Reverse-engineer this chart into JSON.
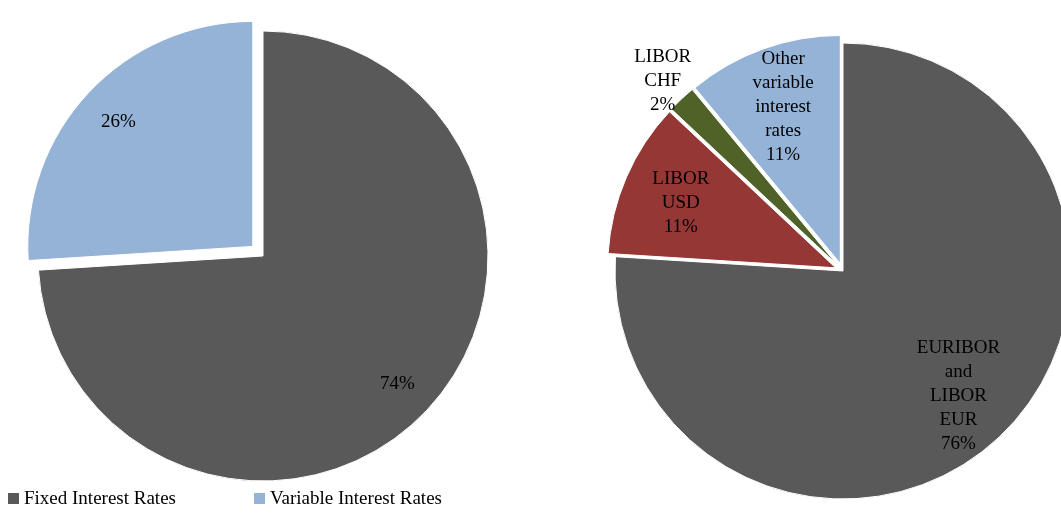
{
  "chart_data": [
    {
      "type": "pie",
      "categories": [
        "Fixed Interest Rates",
        "Variable Interest Rates"
      ],
      "values": [
        74,
        26
      ],
      "colors": [
        "#595959",
        "#95b3d7"
      ],
      "value_labels": [
        "74%",
        "26%"
      ],
      "legend": "bottom"
    },
    {
      "type": "pie",
      "categories": [
        "EURIBOR and LIBOR EUR",
        "LIBOR USD",
        "LIBOR CHF",
        "Other variable interest rates"
      ],
      "values": [
        76,
        11,
        2,
        11
      ],
      "colors": [
        "#595959",
        "#953735",
        "#4f6228",
        "#95b3d7"
      ],
      "value_labels": [
        "76%",
        "11%",
        "2%",
        "11%"
      ],
      "legend": false
    }
  ]
}
